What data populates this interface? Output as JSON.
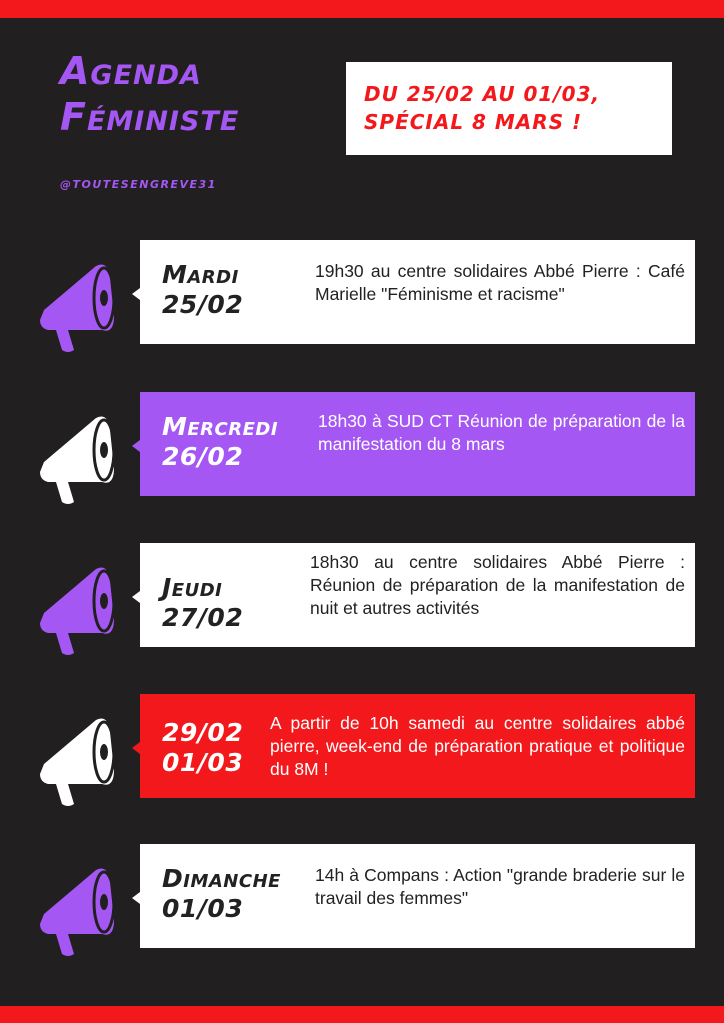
{
  "header": {
    "title_line1": "Agenda",
    "title_line2": "Féministe",
    "handle": "@toutesengreve31",
    "dates_line1": "du 25/02 au 01/03,",
    "dates_line2": "spécial 8 mars !"
  },
  "colors": {
    "background": "#211f1f",
    "purple": "#a557f4",
    "red": "#f2181b",
    "white": "#ffffff"
  },
  "events": [
    {
      "day": "Mardi",
      "date": "25/02",
      "description": "19h30 au centre solidaires Abbé Pierre : Café Marielle \"Féminisme et racisme\"",
      "icon": "megaphone-icon",
      "icon_color": "#a557f4",
      "style": "white"
    },
    {
      "day": "Mercredi",
      "date": "26/02",
      "description": "18h30 à SUD CT Réunion de préparation de la manifestation du 8 mars",
      "icon": "megaphone-icon",
      "icon_color": "#ffffff",
      "style": "purple"
    },
    {
      "day": "Jeudi",
      "date": "27/02",
      "description": "18h30 au centre solidaires Abbé Pierre : Réunion de préparation de la manifestation de nuit et autres activités",
      "icon": "megaphone-icon",
      "icon_color": "#a557f4",
      "style": "white"
    },
    {
      "day": "29/02",
      "date": "01/03",
      "description": "A partir de 10h samedi au centre solidaires abbé pierre, week-end de préparation pratique et politique du 8M !",
      "icon": "megaphone-icon",
      "icon_color": "#ffffff",
      "style": "red"
    },
    {
      "day": "Dimanche",
      "date": "01/03",
      "description": "14h à Compans : Action \"grande braderie sur le travail des femmes\"",
      "icon": "megaphone-icon",
      "icon_color": "#a557f4",
      "style": "white"
    }
  ]
}
